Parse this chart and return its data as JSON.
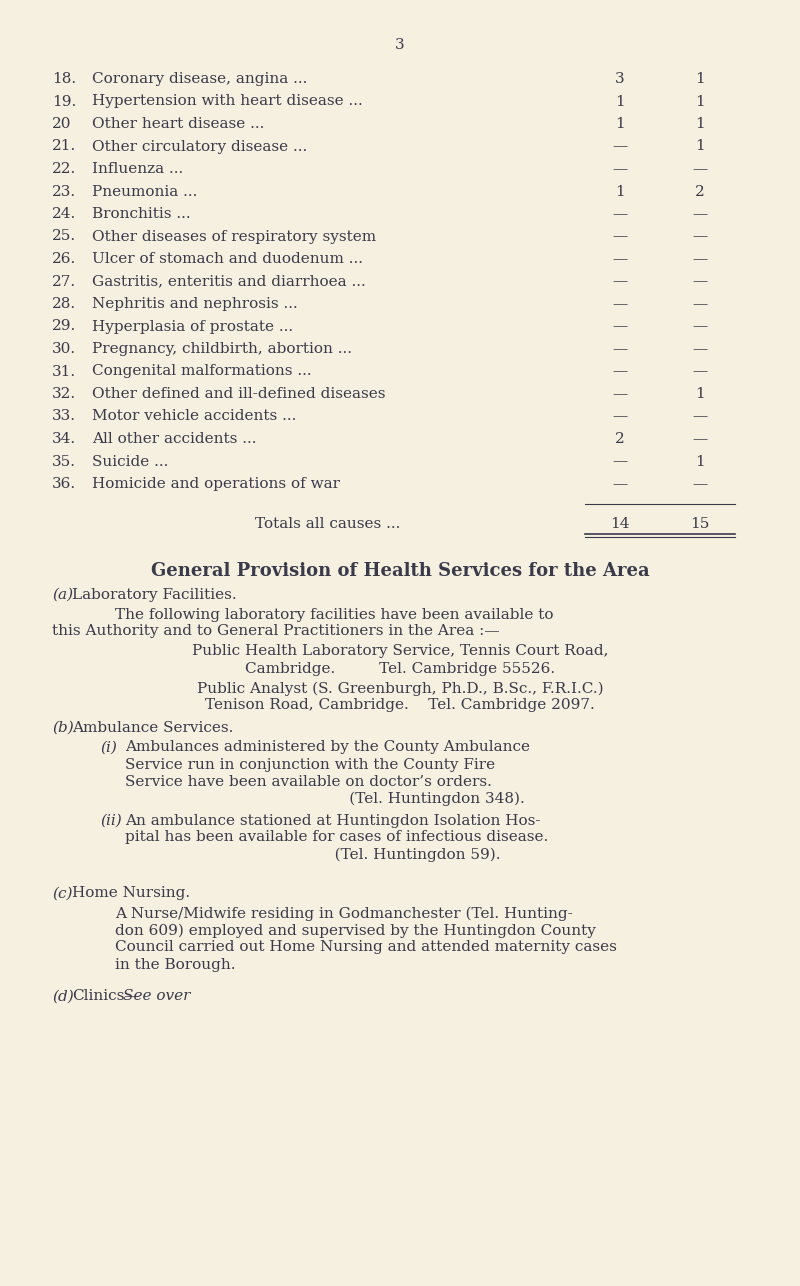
{
  "bg_color": "#f5f0e0",
  "text_color": "#3a3a4a",
  "page_number": "3",
  "table_rows": [
    {
      "num": "18.",
      "desc": "Coronary disease, angina ...",
      "dots": "...          ...",
      "col1": "3",
      "col2": "1"
    },
    {
      "num": "19.",
      "desc": "Hypertension with heart disease ...",
      "dots": "...",
      "col1": "1",
      "col2": "1"
    },
    {
      "num": "20",
      "desc": "Other heart disease ...",
      "dots": "...          ...",
      "col1": "1",
      "col2": "1"
    },
    {
      "num": "21.",
      "desc": "Other circulatory disease ...",
      "dots": "...       ...",
      "col1": "—",
      "col2": "1"
    },
    {
      "num": "22.",
      "desc": "Influenza ...",
      "dots": "...       ...       ...",
      "col1": "—",
      "col2": "—"
    },
    {
      "num": "23.",
      "desc": "Pneumonia ...",
      "dots": "...       ...       ...",
      "col1": "1",
      "col2": "2"
    },
    {
      "num": "24.",
      "desc": "Bronchitis ...",
      "dots": "...       ...       ...",
      "col1": "—",
      "col2": "—"
    },
    {
      "num": "25.",
      "desc": "Other diseases of respiratory system",
      "dots": "...",
      "col1": "—",
      "col2": "—"
    },
    {
      "num": "26.",
      "desc": "Ulcer of stomach and duodenum ...",
      "dots": "...",
      "col1": "—",
      "col2": "—"
    },
    {
      "num": "27.",
      "desc": "Gastritis, enteritis and diarrhoea ...",
      "dots": "...",
      "col1": "—",
      "col2": "—"
    },
    {
      "num": "28.",
      "desc": "Nephritis and nephrosis ...",
      "dots": "...       ...",
      "col1": "—",
      "col2": "—"
    },
    {
      "num": "29.",
      "desc": "Hyperplasia of prostate ...",
      "dots": "...       ...",
      "col1": "—",
      "col2": "—"
    },
    {
      "num": "30.",
      "desc": "Pregnancy, childbirth, abortion ...",
      "dots": "...",
      "col1": "—",
      "col2": "—"
    },
    {
      "num": "31.",
      "desc": "Congenital malformations ...",
      "dots": "...       ...",
      "col1": "—",
      "col2": "—"
    },
    {
      "num": "32.",
      "desc": "Other defined and ill-defined diseases",
      "dots": "...",
      "col1": "—",
      "col2": "1"
    },
    {
      "num": "33.",
      "desc": "Motor vehicle accidents ...",
      "dots": "...       ...",
      "col1": "—",
      "col2": "—"
    },
    {
      "num": "34.",
      "desc": "All other accidents ...",
      "dots": "...       ...       ...",
      "col1": "2",
      "col2": "—"
    },
    {
      "num": "35.",
      "desc": "Suicide ...",
      "dots": "...       ...       ...",
      "col1": "—",
      "col2": "1"
    },
    {
      "num": "36.",
      "desc": "Homicide and operations of war",
      "dots": "...",
      "col1": "—",
      "col2": "—"
    }
  ],
  "totals_label": "Totals all causes ...",
  "total_col1": "14",
  "total_col2": "15",
  "section_title": "General Provision of Health Services for the Area",
  "section_a_title": "(a) Laboratory Facilities.",
  "section_a_label": "(α) Laboratory Facilities.",
  "section_a_body1": "The following laboratory facilities have been available to\nthis Authority and to General Practitioners in the Area :—",
  "section_a_center1": "Public Health Laboratory Service, Tennis Court Road,\nCambridge.          Tel. Cambridge 55526.",
  "section_a_center2": "Public Analyst (S. Greenburgh, Ph.D., B.Sc., F.R.I.C.)\nTenison Road, Cambridge.    Tel. Cambridge 2097.",
  "section_b_title": "(b) Ambulance Services.",
  "section_b_i": "(ι) Ambulances administered by the County Ambulance\nService run in conjunction with the County Fire\nService have been available on doctor’s orders.\n                                                           (Tel. Huntingdon 348).",
  "section_b_ii": "(ιι) An ambulance stationed at Huntingdon Isolation Hos-\npital has been available for cases of infectious disease.\n                                                    (Tel. Huntingdon 59).",
  "section_c_title": "(c) Home Nursing.",
  "section_c_body": "A Nurse/Midwife residing in Godmanchester (Tel. Hunting-\ndon 609) employed and supervised by the Huntingdon County\nCouncil carried out Home Nursing and attended maternity cases\nin the Borough.",
  "section_d": "(δ) Clinics—See over"
}
